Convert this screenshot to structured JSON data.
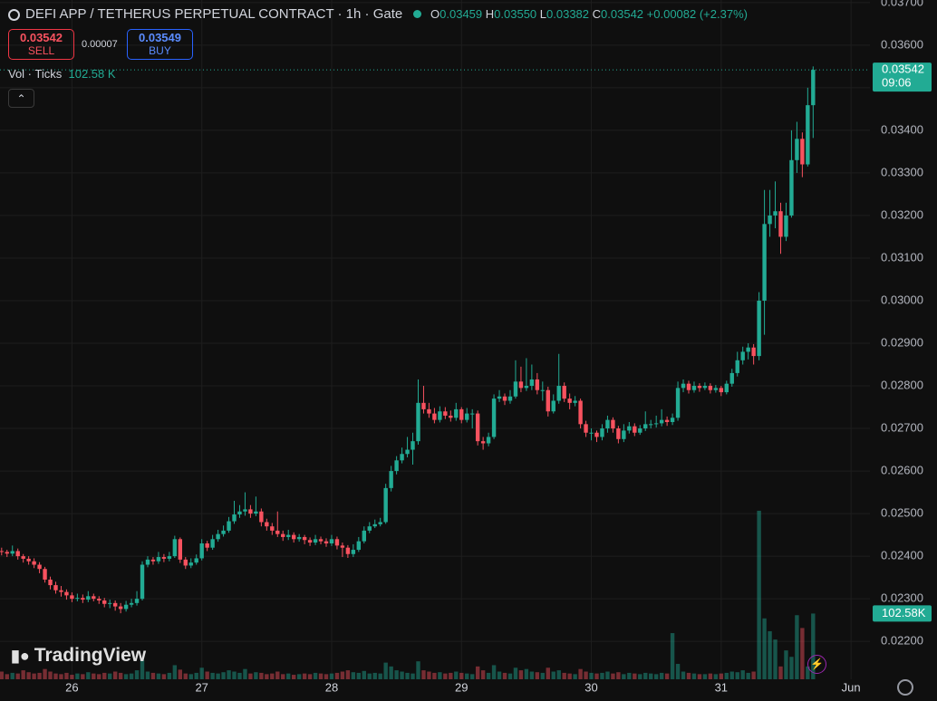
{
  "header": {
    "symbol": "DEFI APP / TETHERUS PERPETUAL CONTRACT · 1h · Gate",
    "o_label": "O",
    "open": "0.03459",
    "h_label": "H",
    "high": "0.03550",
    "l_label": "L",
    "low": "0.03382",
    "c_label": "C",
    "close": "0.03542",
    "change": "+0.00082 (+2.37%)"
  },
  "trade": {
    "sell_price": "0.03542",
    "sell": "SELL",
    "spread": "0.00007",
    "buy_price": "0.03549",
    "buy": "BUY"
  },
  "volume_legend": {
    "label": "Vol · Ticks",
    "value": "102.58 K"
  },
  "brand": "TradingView",
  "chart_data": {
    "type": "candlestick",
    "up_color": "#22ab94",
    "down_color": "#f7525f",
    "grid": true,
    "candles": [
      [
        0.02412,
        0.0242,
        0.02402,
        0.0241
      ],
      [
        0.0241,
        0.02415,
        0.02398,
        0.02406
      ],
      [
        0.02406,
        0.02425,
        0.024,
        0.02412
      ],
      [
        0.02412,
        0.02418,
        0.02392,
        0.024
      ],
      [
        0.024,
        0.02405,
        0.02385,
        0.02394
      ],
      [
        0.02394,
        0.024,
        0.0238,
        0.02388
      ],
      [
        0.02388,
        0.02395,
        0.02372,
        0.0238
      ],
      [
        0.0238,
        0.02386,
        0.0236,
        0.0237
      ],
      [
        0.0237,
        0.02375,
        0.02338,
        0.02345
      ],
      [
        0.02345,
        0.02352,
        0.02322,
        0.02332
      ],
      [
        0.02332,
        0.0234,
        0.02312,
        0.0232
      ],
      [
        0.0232,
        0.0233,
        0.02305,
        0.02316
      ],
      [
        0.02316,
        0.02322,
        0.02298,
        0.02308
      ],
      [
        0.02308,
        0.02315,
        0.02292,
        0.023
      ],
      [
        0.023,
        0.02312,
        0.02294,
        0.02302
      ],
      [
        0.02302,
        0.0231,
        0.0229,
        0.02298
      ],
      [
        0.02298,
        0.02318,
        0.02292,
        0.02306
      ],
      [
        0.02306,
        0.02312,
        0.02294,
        0.023
      ],
      [
        0.023,
        0.02306,
        0.02288,
        0.02296
      ],
      [
        0.02296,
        0.02302,
        0.0228,
        0.02288
      ],
      [
        0.02288,
        0.02298,
        0.02278,
        0.0229
      ],
      [
        0.0229,
        0.02296,
        0.02272,
        0.02282
      ],
      [
        0.02282,
        0.0229,
        0.02266,
        0.02276
      ],
      [
        0.02276,
        0.02295,
        0.0227,
        0.02286
      ],
      [
        0.02286,
        0.023,
        0.0228,
        0.0229
      ],
      [
        0.0229,
        0.02318,
        0.02284,
        0.023
      ],
      [
        0.023,
        0.02388,
        0.02296,
        0.0238
      ],
      [
        0.0238,
        0.024,
        0.02374,
        0.02392
      ],
      [
        0.02392,
        0.02398,
        0.0238,
        0.02388
      ],
      [
        0.02388,
        0.0241,
        0.02382,
        0.02398
      ],
      [
        0.02398,
        0.02405,
        0.02386,
        0.02394
      ],
      [
        0.02394,
        0.0241,
        0.02388,
        0.024
      ],
      [
        0.024,
        0.02448,
        0.02396,
        0.0244
      ],
      [
        0.0244,
        0.02444,
        0.02384,
        0.02392
      ],
      [
        0.02392,
        0.02398,
        0.0237,
        0.02378
      ],
      [
        0.02378,
        0.02395,
        0.02372,
        0.02385
      ],
      [
        0.02385,
        0.02404,
        0.0238,
        0.02395
      ],
      [
        0.02395,
        0.0244,
        0.0239,
        0.0243
      ],
      [
        0.0243,
        0.02436,
        0.02412,
        0.0242
      ],
      [
        0.0242,
        0.0245,
        0.02415,
        0.0244
      ],
      [
        0.0244,
        0.02462,
        0.02434,
        0.02452
      ],
      [
        0.02452,
        0.02472,
        0.02446,
        0.0246
      ],
      [
        0.0246,
        0.02492,
        0.02455,
        0.02482
      ],
      [
        0.02482,
        0.0253,
        0.02476,
        0.02498
      ],
      [
        0.02498,
        0.0252,
        0.0249,
        0.02505
      ],
      [
        0.02505,
        0.0255,
        0.02495,
        0.0251
      ],
      [
        0.0251,
        0.0252,
        0.0249,
        0.025
      ],
      [
        0.025,
        0.0254,
        0.02494,
        0.02505
      ],
      [
        0.02505,
        0.02512,
        0.0247,
        0.0248
      ],
      [
        0.0248,
        0.02488,
        0.0246,
        0.0247
      ],
      [
        0.0247,
        0.02478,
        0.0245,
        0.0246
      ],
      [
        0.0246,
        0.02505,
        0.02445,
        0.02452
      ],
      [
        0.02452,
        0.0246,
        0.02436,
        0.02445
      ],
      [
        0.02445,
        0.02462,
        0.02438,
        0.0245
      ],
      [
        0.0245,
        0.02456,
        0.02432,
        0.0244
      ],
      [
        0.0244,
        0.02452,
        0.02434,
        0.02445
      ],
      [
        0.02445,
        0.0245,
        0.02428,
        0.02438
      ],
      [
        0.02438,
        0.02444,
        0.02424,
        0.02432
      ],
      [
        0.02432,
        0.0245,
        0.02426,
        0.0244
      ],
      [
        0.0244,
        0.02446,
        0.02428,
        0.02435
      ],
      [
        0.02435,
        0.02442,
        0.02422,
        0.0243
      ],
      [
        0.0243,
        0.0245,
        0.02424,
        0.0244
      ],
      [
        0.0244,
        0.02446,
        0.02416,
        0.02425
      ],
      [
        0.02425,
        0.02432,
        0.02398,
        0.0242
      ],
      [
        0.0242,
        0.02426,
        0.02396,
        0.02405
      ],
      [
        0.02405,
        0.02428,
        0.02398,
        0.02415
      ],
      [
        0.02415,
        0.02445,
        0.0241,
        0.02435
      ],
      [
        0.02435,
        0.0247,
        0.0243,
        0.0246
      ],
      [
        0.0246,
        0.0248,
        0.02454,
        0.0247
      ],
      [
        0.0247,
        0.02486,
        0.02466,
        0.02475
      ],
      [
        0.02475,
        0.0249,
        0.0247,
        0.0248
      ],
      [
        0.0248,
        0.0257,
        0.02476,
        0.0256
      ],
      [
        0.0256,
        0.02612,
        0.02552,
        0.026
      ],
      [
        0.026,
        0.02635,
        0.02592,
        0.02625
      ],
      [
        0.02625,
        0.02655,
        0.02618,
        0.0264
      ],
      [
        0.0264,
        0.0268,
        0.02632,
        0.0265
      ],
      [
        0.0265,
        0.0269,
        0.02615,
        0.0267
      ],
      [
        0.0267,
        0.02815,
        0.02662,
        0.0276
      ],
      [
        0.0276,
        0.028,
        0.02735,
        0.02745
      ],
      [
        0.02745,
        0.0276,
        0.02725,
        0.02735
      ],
      [
        0.02735,
        0.02748,
        0.02712,
        0.0272
      ],
      [
        0.0272,
        0.02752,
        0.02714,
        0.0274
      ],
      [
        0.0274,
        0.0275,
        0.02722,
        0.0273
      ],
      [
        0.0273,
        0.02742,
        0.02716,
        0.02725
      ],
      [
        0.02725,
        0.0276,
        0.02718,
        0.02745
      ],
      [
        0.02745,
        0.0275,
        0.02712,
        0.0272
      ],
      [
        0.0272,
        0.02748,
        0.02714,
        0.02735
      ],
      [
        0.02735,
        0.02745,
        0.027,
        0.02735
      ],
      [
        0.02735,
        0.02742,
        0.0266,
        0.0267
      ],
      [
        0.0267,
        0.0268,
        0.0265,
        0.02665
      ],
      [
        0.02665,
        0.0269,
        0.02658,
        0.0268
      ],
      [
        0.0268,
        0.0278,
        0.02675,
        0.0277
      ],
      [
        0.0277,
        0.0279,
        0.02762,
        0.02775
      ],
      [
        0.02775,
        0.02782,
        0.02755,
        0.02765
      ],
      [
        0.02765,
        0.0279,
        0.02758,
        0.02775
      ],
      [
        0.02775,
        0.0286,
        0.0277,
        0.0281
      ],
      [
        0.0281,
        0.02845,
        0.02785,
        0.02795
      ],
      [
        0.02795,
        0.02865,
        0.02788,
        0.028
      ],
      [
        0.028,
        0.0285,
        0.0279,
        0.02815
      ],
      [
        0.02815,
        0.0283,
        0.0278,
        0.0279
      ],
      [
        0.0279,
        0.0281,
        0.02765,
        0.0279
      ],
      [
        0.0279,
        0.02798,
        0.02728,
        0.0274
      ],
      [
        0.0274,
        0.0278,
        0.02735,
        0.02765
      ],
      [
        0.02765,
        0.02875,
        0.02758,
        0.028
      ],
      [
        0.028,
        0.02808,
        0.02762,
        0.0277
      ],
      [
        0.0277,
        0.02782,
        0.02745,
        0.0276
      ],
      [
        0.0276,
        0.02776,
        0.02752,
        0.02765
      ],
      [
        0.02765,
        0.0277,
        0.027,
        0.0271
      ],
      [
        0.0271,
        0.02718,
        0.0268,
        0.0269
      ],
      [
        0.0269,
        0.027,
        0.02672,
        0.0269
      ],
      [
        0.0269,
        0.02695,
        0.02668,
        0.0268
      ],
      [
        0.0268,
        0.0271,
        0.02672,
        0.027
      ],
      [
        0.027,
        0.0273,
        0.0269,
        0.0272
      ],
      [
        0.0272,
        0.02726,
        0.0269,
        0.027
      ],
      [
        0.027,
        0.02706,
        0.02665,
        0.02675
      ],
      [
        0.02675,
        0.0271,
        0.02668,
        0.02695
      ],
      [
        0.02695,
        0.02715,
        0.02688,
        0.02705
      ],
      [
        0.02705,
        0.02712,
        0.02682,
        0.0269
      ],
      [
        0.0269,
        0.02708,
        0.02685,
        0.027
      ],
      [
        0.027,
        0.0274,
        0.02694,
        0.0271
      ],
      [
        0.0271,
        0.0272,
        0.027,
        0.0271
      ],
      [
        0.0271,
        0.0273,
        0.02702,
        0.02712
      ],
      [
        0.02712,
        0.02745,
        0.02705,
        0.0272
      ],
      [
        0.0272,
        0.02728,
        0.02706,
        0.02715
      ],
      [
        0.02715,
        0.02735,
        0.02708,
        0.02725
      ],
      [
        0.02725,
        0.0281,
        0.02718,
        0.02795
      ],
      [
        0.02795,
        0.02815,
        0.02785,
        0.02805
      ],
      [
        0.02805,
        0.02812,
        0.02782,
        0.0279
      ],
      [
        0.0279,
        0.0281,
        0.02784,
        0.028
      ],
      [
        0.028,
        0.02806,
        0.02786,
        0.02795
      ],
      [
        0.02795,
        0.02808,
        0.0279,
        0.028
      ],
      [
        0.028,
        0.02806,
        0.02782,
        0.0279
      ],
      [
        0.0279,
        0.02802,
        0.02784,
        0.02795
      ],
      [
        0.02795,
        0.028,
        0.02776,
        0.02785
      ],
      [
        0.02785,
        0.02812,
        0.0278,
        0.02805
      ],
      [
        0.02805,
        0.0284,
        0.02798,
        0.0283
      ],
      [
        0.0283,
        0.0288,
        0.02822,
        0.0286
      ],
      [
        0.0286,
        0.02892,
        0.0285,
        0.0288
      ],
      [
        0.0288,
        0.029,
        0.02862,
        0.0289
      ],
      [
        0.0289,
        0.02898,
        0.0285,
        0.0287
      ],
      [
        0.0287,
        0.0302,
        0.0286,
        0.03
      ],
      [
        0.03,
        0.0326,
        0.0292,
        0.0318
      ],
      [
        0.0318,
        0.0326,
        0.0315,
        0.032
      ],
      [
        0.032,
        0.0328,
        0.0317,
        0.0321
      ],
      [
        0.0321,
        0.0323,
        0.0311,
        0.0315
      ],
      [
        0.0315,
        0.0323,
        0.0314,
        0.032
      ],
      [
        0.032,
        0.034,
        0.03195,
        0.0333
      ],
      [
        0.0333,
        0.0342,
        0.033,
        0.0338
      ],
      [
        0.0338,
        0.03395,
        0.0329,
        0.0332
      ],
      [
        0.0332,
        0.035,
        0.03315,
        0.03459
      ],
      [
        0.03459,
        0.0355,
        0.03382,
        0.03542
      ]
    ],
    "volume": [
      12,
      8,
      10,
      9,
      14,
      11,
      9,
      10,
      16,
      12,
      9,
      8,
      10,
      7,
      9,
      8,
      11,
      9,
      8,
      10,
      9,
      12,
      10,
      8,
      9,
      14,
      30,
      12,
      10,
      9,
      8,
      10,
      22,
      15,
      9,
      8,
      10,
      18,
      12,
      10,
      9,
      11,
      14,
      12,
      10,
      16,
      9,
      11,
      10,
      8,
      9,
      12,
      8,
      9,
      7,
      8,
      9,
      8,
      10,
      9,
      8,
      9,
      10,
      12,
      14,
      11,
      10,
      13,
      9,
      10,
      9,
      26,
      20,
      14,
      12,
      10,
      9,
      28,
      14,
      12,
      10,
      11,
      9,
      10,
      12,
      10,
      9,
      8,
      20,
      14,
      10,
      22,
      12,
      10,
      9,
      18,
      14,
      16,
      12,
      11,
      10,
      18,
      12,
      14,
      10,
      9,
      8,
      16,
      12,
      10,
      9,
      10,
      12,
      9,
      11,
      8,
      10,
      9,
      8,
      10,
      9,
      8,
      10,
      9,
      72,
      24,
      12,
      10,
      9,
      8,
      8,
      9,
      8,
      9,
      10,
      12,
      11,
      14,
      10,
      12,
      263,
      95,
      75,
      62,
      20,
      45,
      35,
      100,
      80,
      20,
      102.58
    ],
    "volume_last_label": "102.58K",
    "countdown": "09:06",
    "ylim": [
      0.02111,
      0.03706
    ],
    "yticks": [
      {
        "value": 0.037,
        "label": "0.03700"
      },
      {
        "value": 0.036,
        "label": "0.03600"
      },
      {
        "value": 0.035,
        "label": "0.03500"
      },
      {
        "value": 0.034,
        "label": "0.03400"
      },
      {
        "value": 0.033,
        "label": "0.03300"
      },
      {
        "value": 0.032,
        "label": "0.03200"
      },
      {
        "value": 0.031,
        "label": "0.03100"
      },
      {
        "value": 0.03,
        "label": "0.03000"
      },
      {
        "value": 0.029,
        "label": "0.02900"
      },
      {
        "value": 0.028,
        "label": "0.02800"
      },
      {
        "value": 0.027,
        "label": "0.02700"
      },
      {
        "value": 0.026,
        "label": "0.02600"
      },
      {
        "value": 0.025,
        "label": "0.02500"
      },
      {
        "value": 0.024,
        "label": "0.02400"
      },
      {
        "value": 0.023,
        "label": "0.02300"
      },
      {
        "value": 0.022,
        "label": "0.02200"
      }
    ],
    "xlim": [
      -0.3,
      160.5
    ],
    "xticks": [
      {
        "value": 13,
        "label": "26"
      },
      {
        "value": 37,
        "label": "27"
      },
      {
        "value": 61,
        "label": "28"
      },
      {
        "value": 85,
        "label": "29"
      },
      {
        "value": 109,
        "label": "30"
      },
      {
        "value": 133,
        "label": "31"
      },
      {
        "value": 157,
        "label": "Jun"
      }
    ],
    "vlim": [
      0,
      1060
    ]
  }
}
